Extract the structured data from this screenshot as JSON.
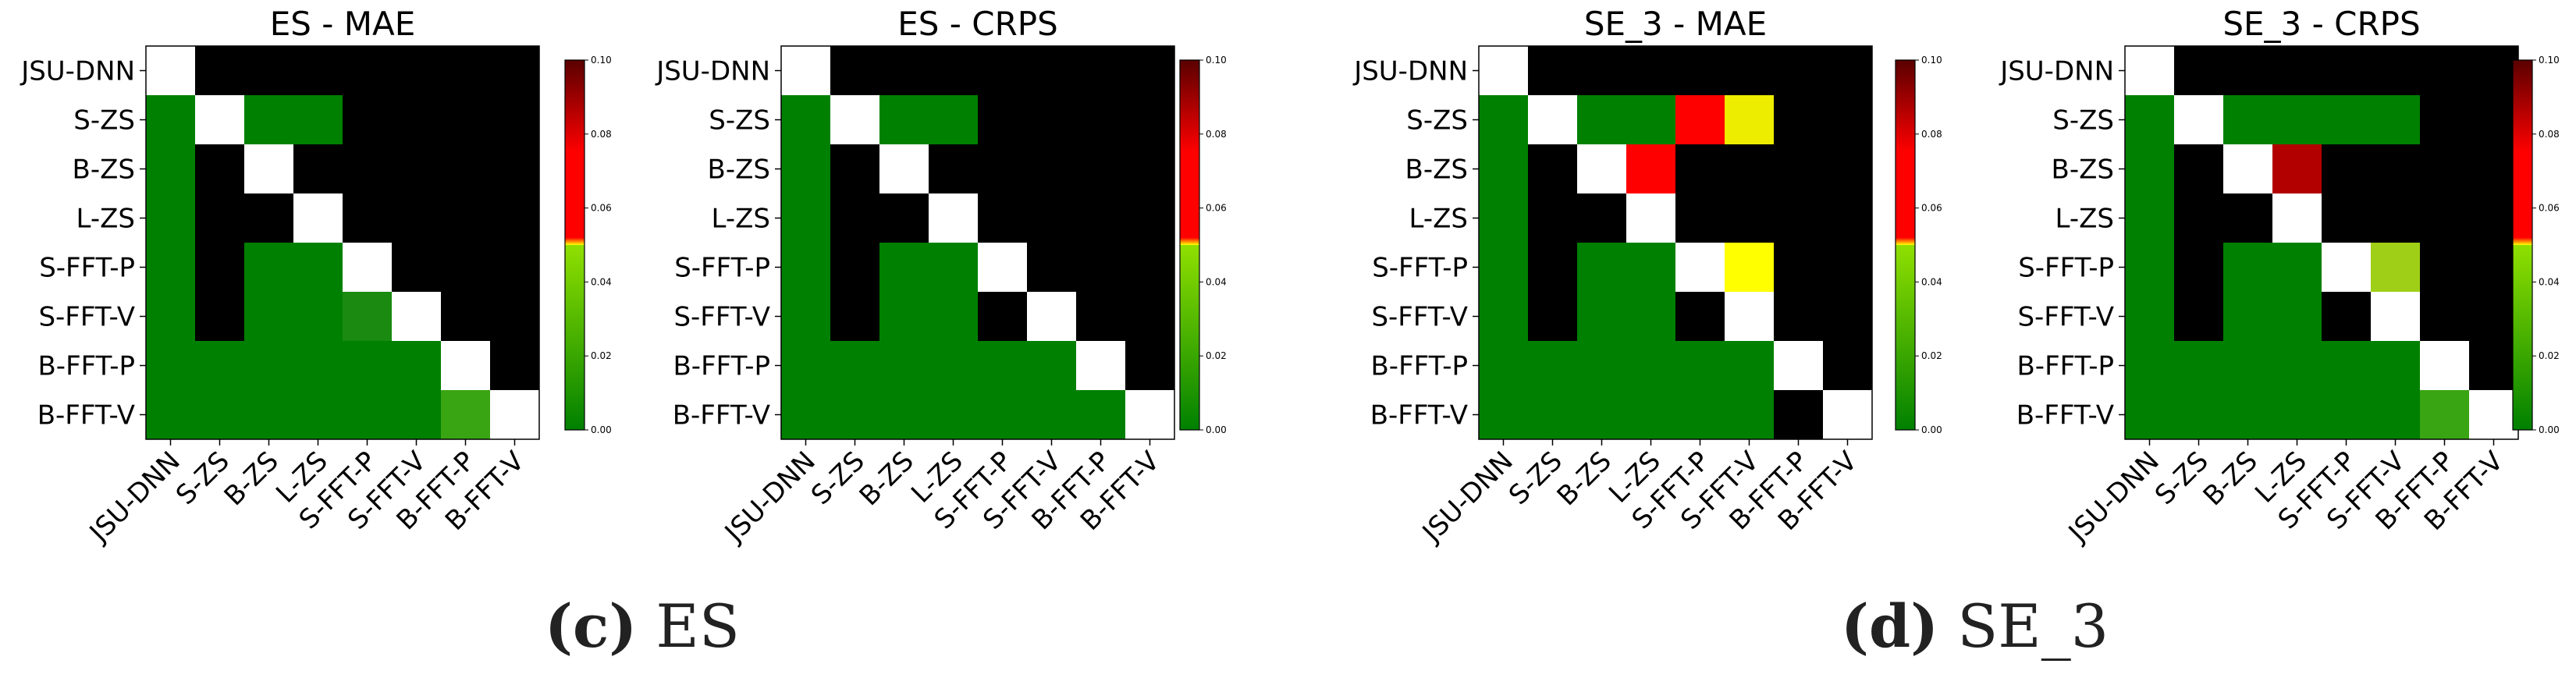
{
  "labels": [
    "JSU-DNN",
    "S-ZS",
    "B-ZS",
    "L-ZS",
    "S-FFT-P",
    "S-FFT-V",
    "B-FFT-P",
    "B-FFT-V"
  ],
  "colorbar_ticks": [
    "0.00",
    "0.02",
    "0.04",
    "0.06",
    "0.08",
    "0.10"
  ],
  "colors": {
    "green": "#008000",
    "green_mid": "#1a8a10",
    "green_light": "#3aa512",
    "yellow_green": "#9fcf17",
    "yellow": "#eded00",
    "yellow_bright": "#ffff00",
    "red": "#ff0000",
    "dark_red": "#b20000",
    "black": "#000000",
    "white": "#ffffff"
  },
  "captions": [
    {
      "letter": "(c)",
      "text": " ES"
    },
    {
      "letter": "(d)",
      "text": " SE_3"
    }
  ],
  "chart_data": [
    {
      "type": "heatmap",
      "title": "ES - MAE",
      "cells": [
        [
          "w",
          "k",
          "k",
          "k",
          "k",
          "k",
          "k",
          "k"
        ],
        [
          "g",
          "w",
          "g",
          "g",
          "k",
          "k",
          "k",
          "k"
        ],
        [
          "g",
          "k",
          "w",
          "k",
          "k",
          "k",
          "k",
          "k"
        ],
        [
          "g",
          "k",
          "k",
          "w",
          "k",
          "k",
          "k",
          "k"
        ],
        [
          "g",
          "k",
          "g",
          "g",
          "w",
          "k",
          "k",
          "k"
        ],
        [
          "g",
          "k",
          "g",
          "g",
          "gm",
          "w",
          "k",
          "k"
        ],
        [
          "g",
          "g",
          "g",
          "g",
          "g",
          "g",
          "w",
          "k"
        ],
        [
          "g",
          "g",
          "g",
          "g",
          "g",
          "g",
          "gl",
          "w"
        ]
      ]
    },
    {
      "type": "heatmap",
      "title": "ES - CRPS",
      "cells": [
        [
          "w",
          "k",
          "k",
          "k",
          "k",
          "k",
          "k",
          "k"
        ],
        [
          "g",
          "w",
          "g",
          "g",
          "k",
          "k",
          "k",
          "k"
        ],
        [
          "g",
          "k",
          "w",
          "k",
          "k",
          "k",
          "k",
          "k"
        ],
        [
          "g",
          "k",
          "k",
          "w",
          "k",
          "k",
          "k",
          "k"
        ],
        [
          "g",
          "k",
          "g",
          "g",
          "w",
          "k",
          "k",
          "k"
        ],
        [
          "g",
          "k",
          "g",
          "g",
          "k",
          "w",
          "k",
          "k"
        ],
        [
          "g",
          "g",
          "g",
          "g",
          "g",
          "g",
          "w",
          "k"
        ],
        [
          "g",
          "g",
          "g",
          "g",
          "g",
          "g",
          "g",
          "w"
        ]
      ]
    },
    {
      "type": "heatmap",
      "title": "SE_3 - MAE",
      "cells": [
        [
          "w",
          "k",
          "k",
          "k",
          "k",
          "k",
          "k",
          "k"
        ],
        [
          "g",
          "w",
          "g",
          "g",
          "r",
          "y",
          "k",
          "k"
        ],
        [
          "g",
          "k",
          "w",
          "r",
          "k",
          "k",
          "k",
          "k"
        ],
        [
          "g",
          "k",
          "k",
          "w",
          "k",
          "k",
          "k",
          "k"
        ],
        [
          "g",
          "k",
          "g",
          "g",
          "w",
          "yb",
          "k",
          "k"
        ],
        [
          "g",
          "k",
          "g",
          "g",
          "k",
          "w",
          "k",
          "k"
        ],
        [
          "g",
          "g",
          "g",
          "g",
          "g",
          "g",
          "w",
          "k"
        ],
        [
          "g",
          "g",
          "g",
          "g",
          "g",
          "g",
          "k",
          "w"
        ]
      ]
    },
    {
      "type": "heatmap",
      "title": "SE_3 - CRPS",
      "cells": [
        [
          "w",
          "k",
          "k",
          "k",
          "k",
          "k",
          "k",
          "k"
        ],
        [
          "g",
          "w",
          "g",
          "g",
          "g",
          "g",
          "k",
          "k"
        ],
        [
          "g",
          "k",
          "w",
          "dr",
          "k",
          "k",
          "k",
          "k"
        ],
        [
          "g",
          "k",
          "k",
          "w",
          "k",
          "k",
          "k",
          "k"
        ],
        [
          "g",
          "k",
          "g",
          "g",
          "w",
          "yg",
          "k",
          "k"
        ],
        [
          "g",
          "k",
          "g",
          "g",
          "k",
          "w",
          "k",
          "k"
        ],
        [
          "g",
          "g",
          "g",
          "g",
          "g",
          "g",
          "w",
          "k"
        ],
        [
          "g",
          "g",
          "g",
          "g",
          "g",
          "g",
          "gl",
          "w"
        ]
      ]
    }
  ]
}
